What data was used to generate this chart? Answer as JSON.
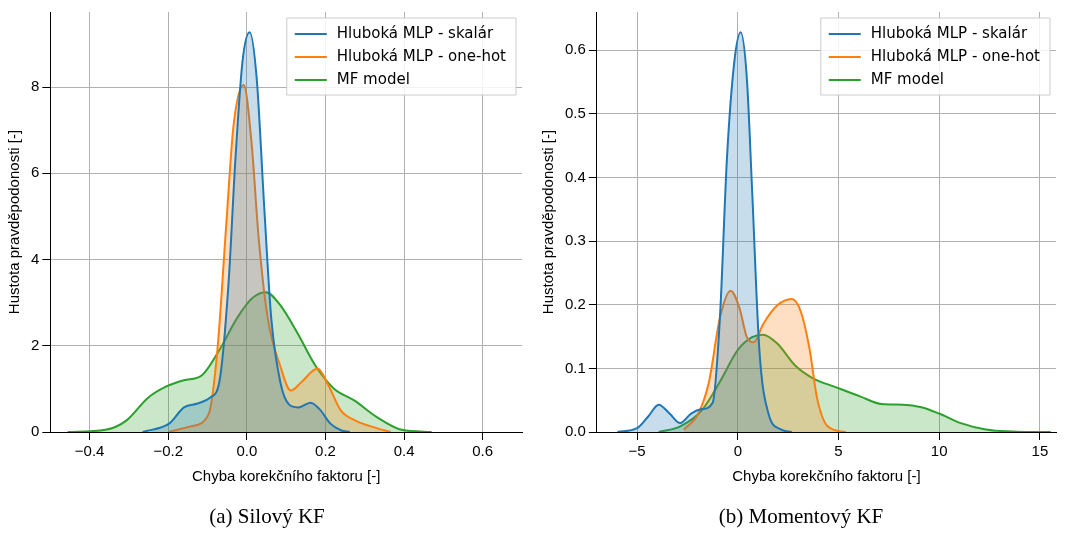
{
  "chart_data": [
    {
      "type": "area",
      "title": "(a) Silový KF",
      "xlabel": "Chyba korekčního faktoru [-]",
      "ylabel": "Hustota pravděpodonosti [-]",
      "xlim": [
        -0.5,
        0.7
      ],
      "xticks": [
        {
          "value": -0.4,
          "label": "−0.4"
        },
        {
          "value": -0.2,
          "label": "−0.2"
        },
        {
          "value": 0,
          "label": "0.0"
        },
        0.2,
        0.4,
        0.6
      ],
      "ylim": [
        0,
        9.74
      ],
      "yticks": [
        0,
        2,
        4,
        6,
        8
      ],
      "grid": true,
      "legend": "top right",
      "series": [
        {
          "name": "Hluboká MLP - skalár",
          "color": "#1f77b4",
          "x": [
            -0.265,
            -0.197,
            -0.16,
            -0.125,
            -0.093,
            -0.07,
            -0.047,
            -0.029,
            -0.011,
            0.007,
            0.025,
            0.044,
            0.062,
            0.085,
            0.107,
            0.13,
            0.162,
            0.185,
            0.212,
            0.239,
            0.262
          ],
          "values": [
            0,
            0.2,
            0.57,
            0.66,
            0.8,
            1.16,
            3.4,
            6.35,
            8.6,
            9.27,
            8.2,
            5.24,
            2.64,
            1.16,
            0.64,
            0.57,
            0.68,
            0.53,
            0.2,
            0.04,
            0
          ]
        },
        {
          "name": "Hluboká MLP - one-hot",
          "color": "#ff7f0e",
          "x": [
            -0.2,
            -0.143,
            -0.097,
            -0.075,
            -0.052,
            -0.034,
            -0.008,
            0.012,
            0.03,
            0.053,
            0.085,
            0.112,
            0.139,
            0.18,
            0.207,
            0.239,
            0.275,
            0.33,
            0.366
          ],
          "values": [
            0,
            0.13,
            0.42,
            1.9,
            4.87,
            7.1,
            8.05,
            6.7,
            4.5,
            2.64,
            1.53,
            0.96,
            1.16,
            1.47,
            1.09,
            0.5,
            0.27,
            0.09,
            0
          ]
        },
        {
          "name": "MF model",
          "color": "#2ca02c",
          "x": [
            -0.456,
            -0.36,
            -0.306,
            -0.252,
            -0.206,
            -0.16,
            -0.115,
            -0.07,
            -0.025,
            0.012,
            0.048,
            0.085,
            0.13,
            0.175,
            0.221,
            0.275,
            0.33,
            0.394,
            0.47
          ],
          "values": [
            0,
            0.05,
            0.27,
            0.79,
            1.05,
            1.2,
            1.31,
            1.9,
            2.64,
            3.09,
            3.24,
            2.94,
            2.27,
            1.53,
            1.01,
            0.72,
            0.35,
            0.05,
            0
          ]
        }
      ]
    },
    {
      "type": "area",
      "title": "(b) Momentový KF",
      "xlabel": "Chyba korekčního faktoru [-]",
      "ylabel": "Hustota pravděpodonosti [-]",
      "xlim": [
        -7,
        15.8
      ],
      "xticks": [
        {
          "value": -5,
          "label": "−5"
        },
        0,
        5,
        10,
        15
      ],
      "ylim": [
        0,
        0.66
      ],
      "yticks": [
        {
          "value": 0,
          "label": "0.0"
        },
        0.1,
        0.2,
        0.3,
        0.4,
        0.5,
        0.6
      ],
      "grid": true,
      "legend": "top right",
      "series": [
        {
          "name": "Hluboká MLP - skalár",
          "color": "#1f77b4",
          "x": [
            -5.98,
            -5,
            -4.46,
            -3.93,
            -3.39,
            -2.86,
            -2.32,
            -1.79,
            -1.25,
            -0.89,
            -0.54,
            -0.18,
            0.14,
            0.45,
            0.71,
            1.07,
            1.52,
            2.14,
            2.68
          ],
          "values": [
            0,
            0.006,
            0.024,
            0.043,
            0.029,
            0.014,
            0.029,
            0.036,
            0.046,
            0.179,
            0.43,
            0.58,
            0.628,
            0.555,
            0.38,
            0.129,
            0.029,
            0.004,
            0
          ]
        },
        {
          "name": "Hluboká MLP - one-hot",
          "color": "#ff7f0e",
          "x": [
            -2.68,
            -1.96,
            -1.43,
            -0.89,
            -0.36,
            0.09,
            0.45,
            0.8,
            1.25,
            1.96,
            2.68,
            3.13,
            3.57,
            3.93,
            4.46,
            5.36
          ],
          "values": [
            0.004,
            0.029,
            0.079,
            0.179,
            0.222,
            0.194,
            0.149,
            0.141,
            0.169,
            0.199,
            0.209,
            0.189,
            0.129,
            0.054,
            0.009,
            0
          ]
        },
        {
          "name": "MF model",
          "color": "#2ca02c",
          "x": [
            -3.93,
            -2.86,
            -1.79,
            -0.89,
            0,
            0.71,
            1.25,
            1.96,
            2.86,
            3.75,
            4.82,
            6.07,
            7.14,
            8.21,
            9.11,
            10,
            11.07,
            12.32,
            13.39,
            15.54
          ],
          "values": [
            0,
            0.009,
            0.034,
            0.079,
            0.129,
            0.149,
            0.153,
            0.139,
            0.104,
            0.084,
            0.071,
            0.056,
            0.044,
            0.043,
            0.039,
            0.029,
            0.014,
            0.004,
            0.001,
            0
          ]
        }
      ]
    }
  ]
}
